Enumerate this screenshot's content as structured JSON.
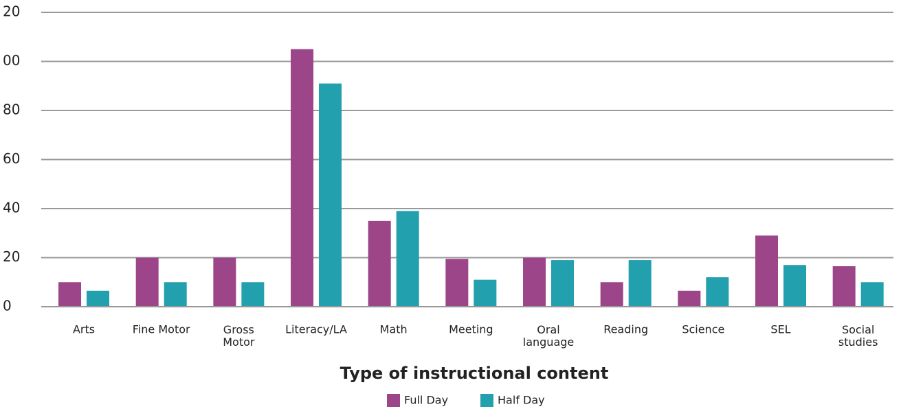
{
  "chart_data": {
    "type": "bar",
    "x_label": "Type of instructional content",
    "categories": [
      "Arts",
      "Fine Motor",
      "Gross\nMotor",
      "Literacy/LA",
      "Math",
      "Meeting",
      "Oral\nlanguage",
      "Reading",
      "Science",
      "SEL",
      "Social\nstudies"
    ],
    "series": [
      {
        "name": "Full Day",
        "color": "#9c4589",
        "values": [
          10,
          20,
          20,
          105,
          35,
          19.5,
          20,
          10,
          6.5,
          29,
          16.5
        ]
      },
      {
        "name": "Half Day",
        "color": "#22a0ae",
        "values": [
          6.5,
          10,
          10,
          91,
          39,
          11,
          19,
          19,
          12,
          17,
          10
        ]
      }
    ],
    "ylim": [
      0,
      120
    ],
    "yticks": [
      0,
      20,
      40,
      60,
      80,
      {
        "value": 100,
        "label": "00"
      },
      {
        "value": 120,
        "label": "20"
      }
    ],
    "grid": true
  }
}
